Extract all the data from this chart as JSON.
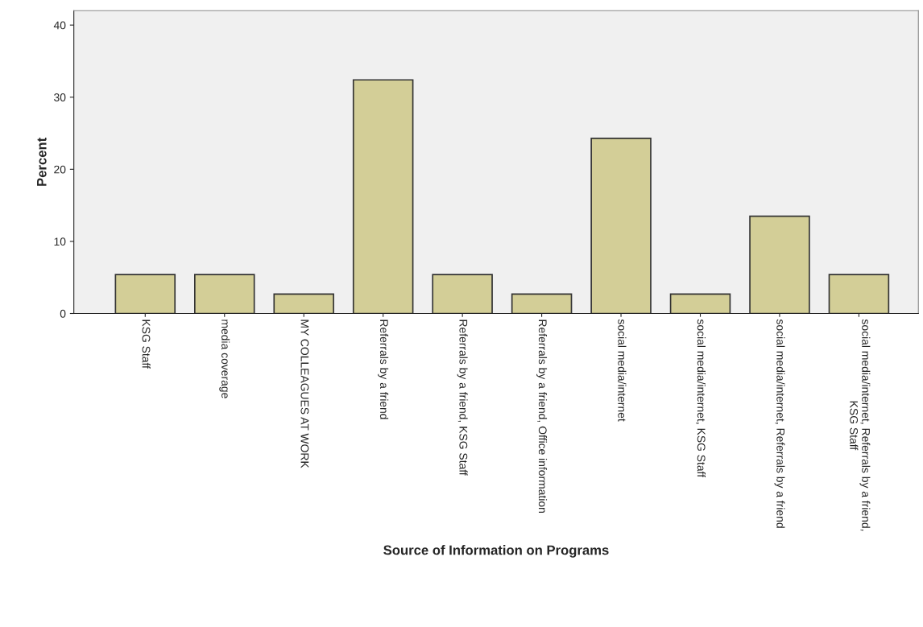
{
  "chart_data": {
    "type": "bar",
    "xlabel": "Source of Information on Programs",
    "ylabel": "Percent",
    "categories": [
      "KSG Staff",
      "media coverage",
      "MY COLLEAGUES AT WORK",
      "Referrals by a friend",
      "Referrals by a friend, KSG Staff",
      "Referrals by a friend, Office information",
      "social media/internet",
      "social media/internet, KSG Staff",
      "social media/internet, Referrals by a friend",
      "social media/internet, Referrals by a friend,\nKSG Staff"
    ],
    "values": [
      5.4,
      5.4,
      2.7,
      32.4,
      5.4,
      2.7,
      24.3,
      2.7,
      13.5,
      5.4
    ],
    "color": "#d3ce97",
    "ylim": [
      0,
      42
    ],
    "yticks": [
      0,
      10,
      20,
      30,
      40
    ],
    "grid": false
  }
}
